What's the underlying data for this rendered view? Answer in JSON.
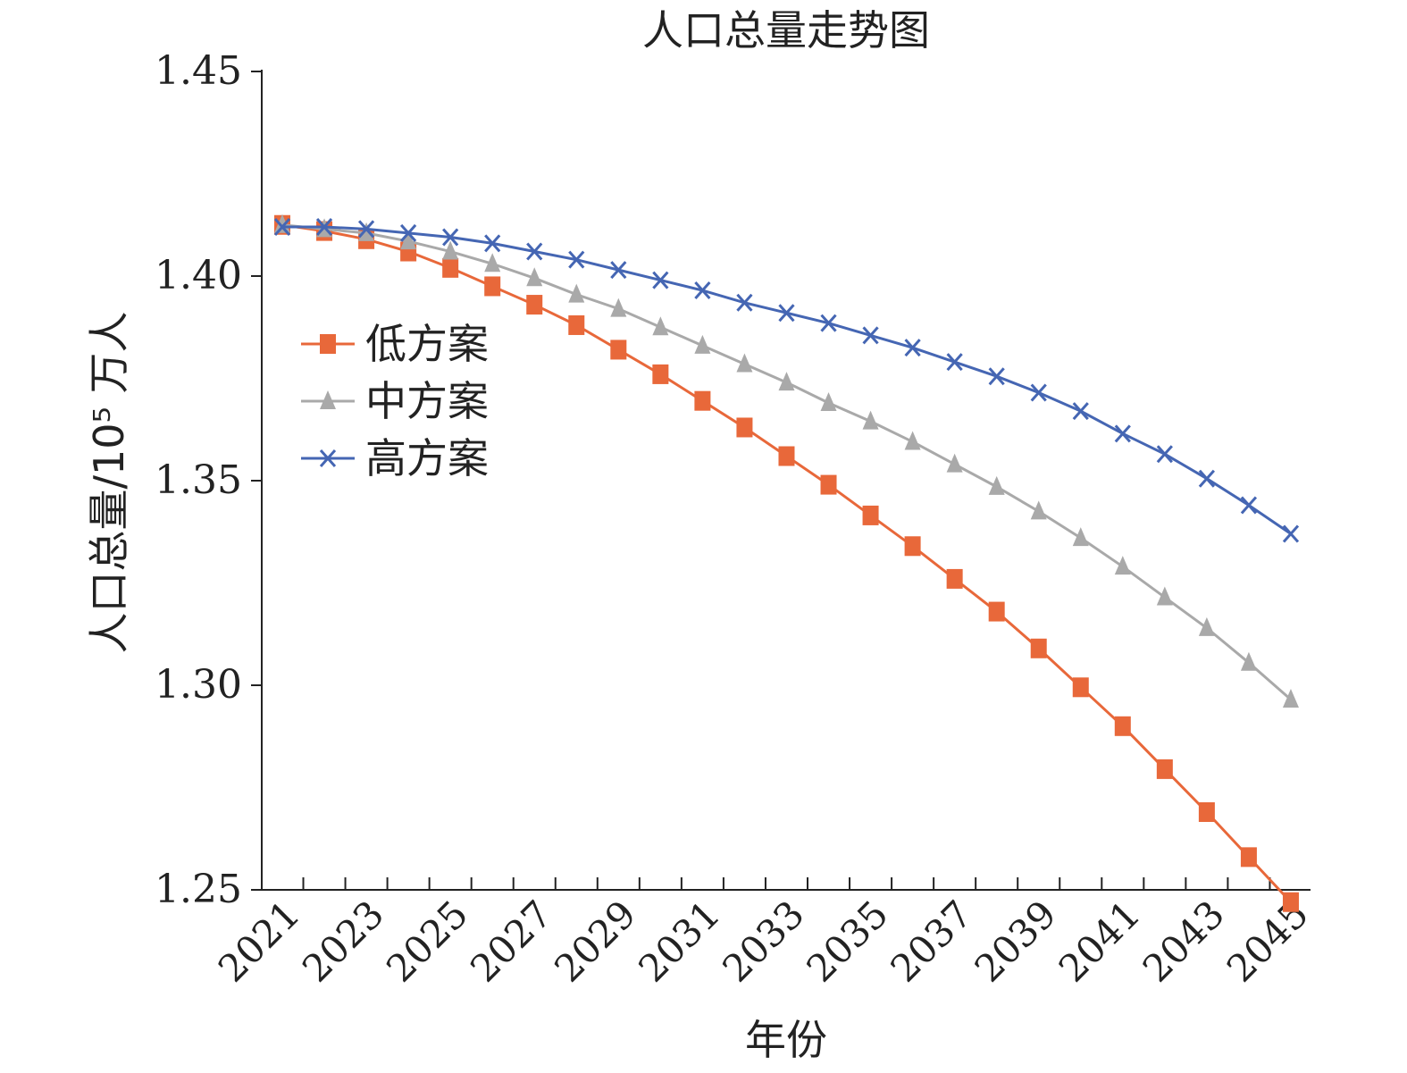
{
  "chart_data": {
    "type": "line",
    "title": "人口总量走势图",
    "xlabel": "年份",
    "ylabel": "人口总量/10⁵ 万人",
    "ylim": [
      1.25,
      1.45
    ],
    "yticks": [
      "1.25",
      "1.30",
      "1.35",
      "1.40",
      "1.45"
    ],
    "x": [
      2021,
      2022,
      2023,
      2024,
      2025,
      2026,
      2027,
      2028,
      2029,
      2030,
      2031,
      2032,
      2033,
      2034,
      2035,
      2036,
      2037,
      2038,
      2039,
      2040,
      2041,
      2042,
      2043,
      2044,
      2045
    ],
    "xtick_labels": [
      "2021",
      "2023",
      "2025",
      "2027",
      "2029",
      "2031",
      "2033",
      "2035",
      "2037",
      "2039",
      "2041",
      "2043",
      "2045"
    ],
    "legend_position": "upper-left",
    "grid": false,
    "series": [
      {
        "name": "低方案",
        "color": "#e8683a",
        "marker": "square",
        "values": [
          1.4125,
          1.411,
          1.409,
          1.406,
          1.402,
          1.3975,
          1.393,
          1.388,
          1.382,
          1.376,
          1.3695,
          1.363,
          1.356,
          1.349,
          1.3415,
          1.334,
          1.326,
          1.318,
          1.309,
          1.2995,
          1.29,
          1.2795,
          1.269,
          1.258,
          1.247
        ]
      },
      {
        "name": "中方案",
        "color": "#a9a9a9",
        "marker": "triangle",
        "values": [
          1.4125,
          1.4115,
          1.4105,
          1.4085,
          1.406,
          1.403,
          1.3995,
          1.3955,
          1.392,
          1.3875,
          1.383,
          1.3785,
          1.374,
          1.369,
          1.3645,
          1.3595,
          1.354,
          1.3485,
          1.3425,
          1.336,
          1.329,
          1.3215,
          1.314,
          1.3055,
          1.2965
        ]
      },
      {
        "name": "高方案",
        "color": "#4566b3",
        "marker": "x",
        "values": [
          1.412,
          1.412,
          1.4115,
          1.4105,
          1.4095,
          1.408,
          1.406,
          1.404,
          1.4015,
          1.399,
          1.3965,
          1.3935,
          1.391,
          1.3885,
          1.3855,
          1.3825,
          1.379,
          1.3755,
          1.3715,
          1.367,
          1.3615,
          1.3565,
          1.3505,
          1.344,
          1.337
        ]
      }
    ]
  }
}
